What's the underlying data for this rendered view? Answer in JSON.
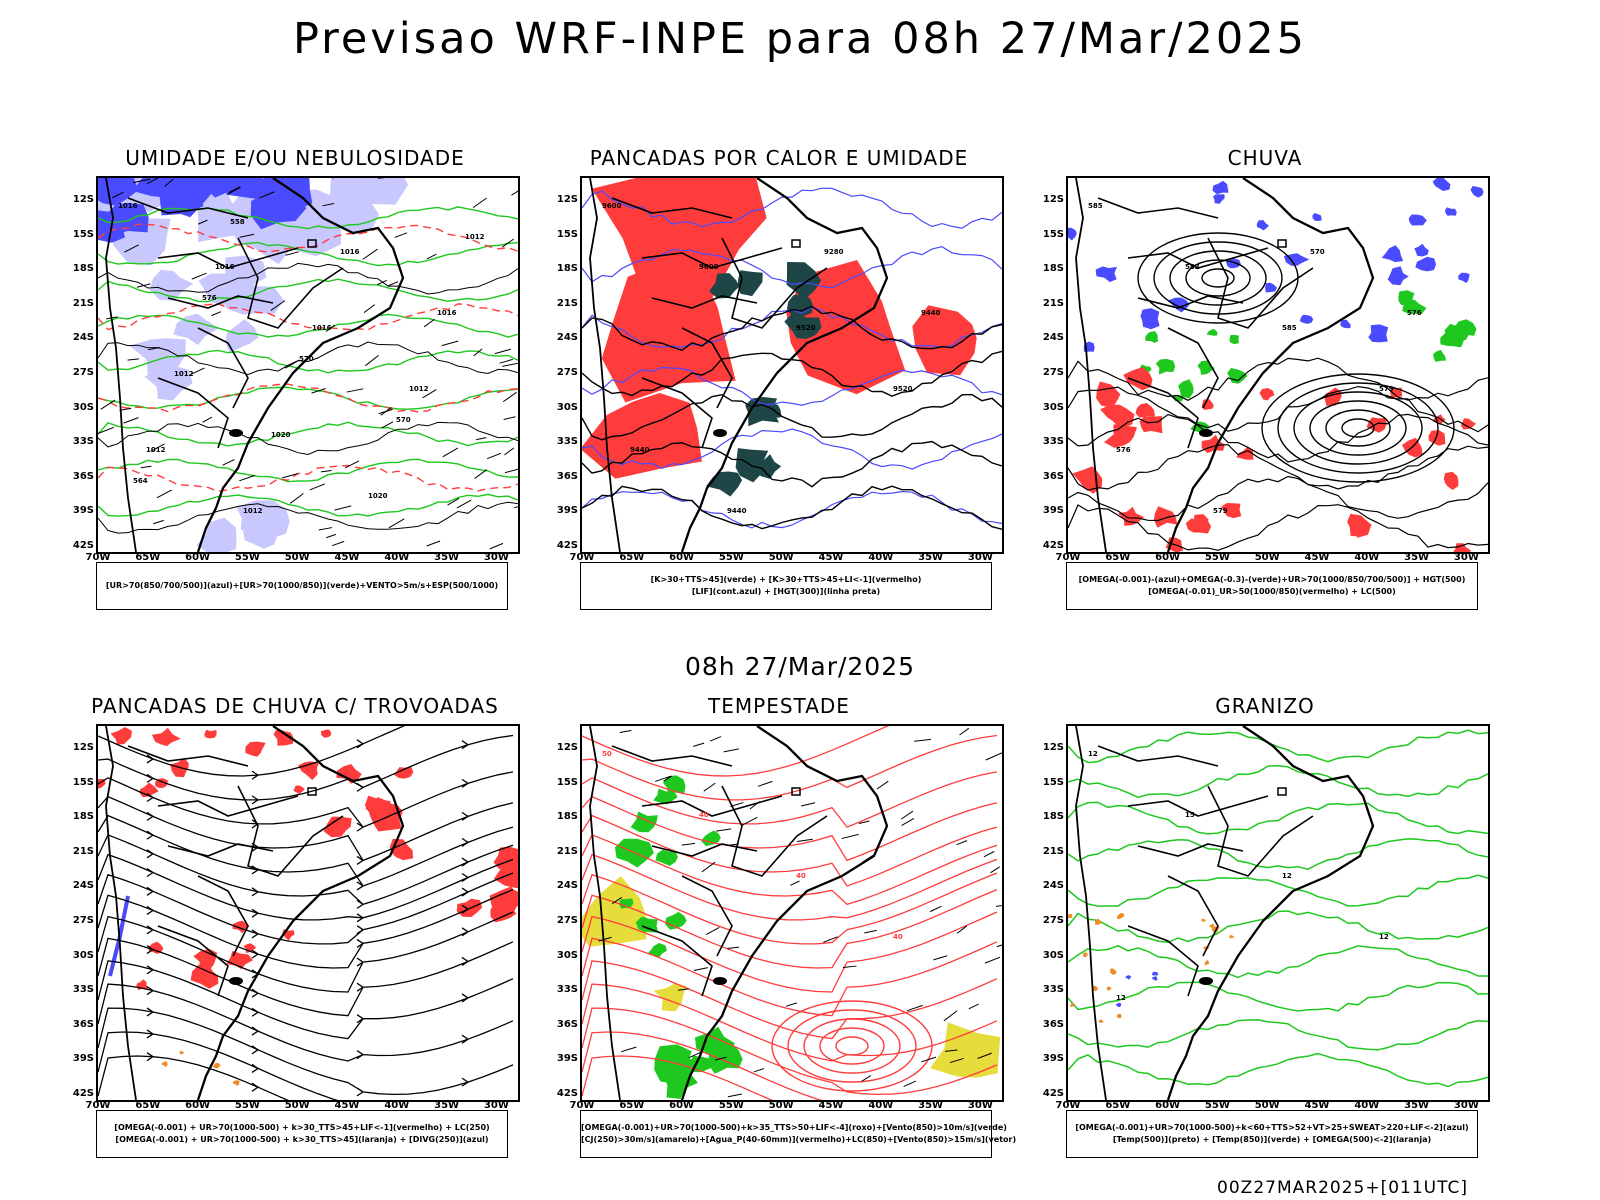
{
  "header": {
    "title": "Previsao WRF-INPE  para 08h 27/Mar/2025"
  },
  "mid_title": "08h 27/Mar/2025",
  "footer": "00Z27MAR2025+[011UTC]",
  "lat_labels": [
    "12S",
    "15S",
    "18S",
    "21S",
    "24S",
    "27S",
    "30S",
    "33S",
    "36S",
    "39S",
    "42S"
  ],
  "lon_labels": [
    "70W",
    "65W",
    "60W",
    "55W",
    "50W",
    "45W",
    "40W",
    "35W",
    "30W"
  ],
  "colors": {
    "blue": "#4a4aff",
    "light_blue": "#c8c8ff",
    "green": "#1ec81e",
    "red": "#ff3c3c",
    "dark_teal": "#1e4646",
    "yellow": "#e6dc3c",
    "orange": "#f08c28"
  },
  "panels": [
    {
      "title": "UMIDADE E/OU NEBULOSIDADE",
      "legend": [
        "[UR>70(850/700/500)](azul)+[UR>70(1000/850)](verde)+VENTO>5m/s+ESP(500/1000)"
      ],
      "contour_labels": [
        "1016",
        "1016",
        "1016",
        "1012",
        "1012",
        "1012",
        "1016",
        "1016",
        "1012",
        "1020",
        "1020",
        "1012",
        "576",
        "570",
        "570",
        "564",
        "558"
      ]
    },
    {
      "title": "PANCADAS POR CALOR E UMIDADE",
      "legend": [
        "[K>30+TTS>45](verde)  +  [K>30+TTS>45+LI<-1](vermelho)",
        "[LIF](cont.azul)  +  [HGT(300)](linha preta)"
      ],
      "contour_labels": [
        "9600",
        "9600",
        "9520",
        "9520",
        "9440",
        "9440",
        "9280",
        "9440"
      ]
    },
    {
      "title": "CHUVA",
      "legend": [
        "[OMEGA(-0.001)-(azul)+OMEGA(-0.3)-(verde)+UR>70(1000/850/700/500)]  +  HGT(500)",
        "[OMEGA(-0.01)_UR>50(1000/850)(vermelho)  +  LC(500)"
      ],
      "contour_labels": [
        "585",
        "582",
        "585",
        "579",
        "576",
        "579",
        "570",
        "576"
      ]
    },
    {
      "title": "PANCADAS DE CHUVA C/ TROVOADAS",
      "legend": [
        "[OMEGA(-0.001)  +  UR>70(1000-500)  +  k>30_TTS>45+LIF<-1](vermelho)  +  LC(250)",
        "[OMEGA(-0.001)  +  UR>70(1000-500)  +  k>30_TTS>45](laranja)  +  [DIVG(250)](azul)"
      ],
      "contour_labels": []
    },
    {
      "title": "TEMPESTADE",
      "legend": [
        "[OMEGA(-0.001)+UR>70(1000-500)+k>35_TTS>50+LIF<-4](roxo)+[Vento(850)>10m/s](verde)",
        "[CJ(250)>30m/s](amarelo)+[Agua_P(40-60mm)](vermelho)+LC(850)+[Vento(850)>15m/s](vetor)"
      ],
      "contour_labels": [
        "50",
        "40",
        "40",
        "40"
      ]
    },
    {
      "title": "GRANIZO",
      "legend": [
        "[OMEGA(-0.001)+UR>70(1000-500)+k<60+TTS>52+VT>25+SWEAT>220+LIF<-2](azul)",
        "[Temp(500)](preto)  +  [Temp(850)](verde)  +  [OMEGA(500)<-2](laranja)"
      ],
      "contour_labels": [
        "12",
        "15",
        "12",
        "12",
        "12"
      ]
    }
  ]
}
